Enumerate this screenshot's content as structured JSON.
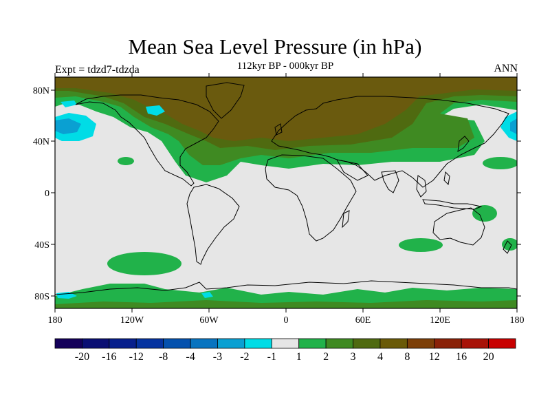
{
  "title": "Mean Sea Level Pressure (in hPa)",
  "subtitle": "112kyr BP - 000kyr BP",
  "left_label": "Expt = tdzd7-tdzda",
  "right_label": "ANN",
  "lat_ticks": [
    "80N",
    "40N",
    "0",
    "40S",
    "80S"
  ],
  "lon_ticks": [
    "180",
    "120W",
    "60W",
    "0",
    "60E",
    "120E",
    "180"
  ],
  "colorbar": {
    "colors": [
      "#14005a",
      "#0a0f73",
      "#071f8c",
      "#0533a0",
      "#0451ae",
      "#0874c0",
      "#0aa0d2",
      "#00dce6",
      "#e6e6e6",
      "#21b24a",
      "#3f8a22",
      "#4f6a10",
      "#6a5a08",
      "#7c3f08",
      "#8a2208",
      "#a81208",
      "#c80000"
    ],
    "labels": [
      "-20",
      "-16",
      "-12",
      "-8",
      "-4",
      "-3",
      "-2",
      "-1",
      "1",
      "2",
      "3",
      "4",
      "8",
      "12",
      "16",
      "20"
    ]
  },
  "map_colors": {
    "background": "#e6e6e6",
    "light_green": "#21b24a",
    "green": "#3f8a22",
    "olive": "#5a6812",
    "brown": "#6a5a0e",
    "cyan": "#00dce6",
    "light_blue": "#0aa0d2",
    "coast": "#000000"
  }
}
